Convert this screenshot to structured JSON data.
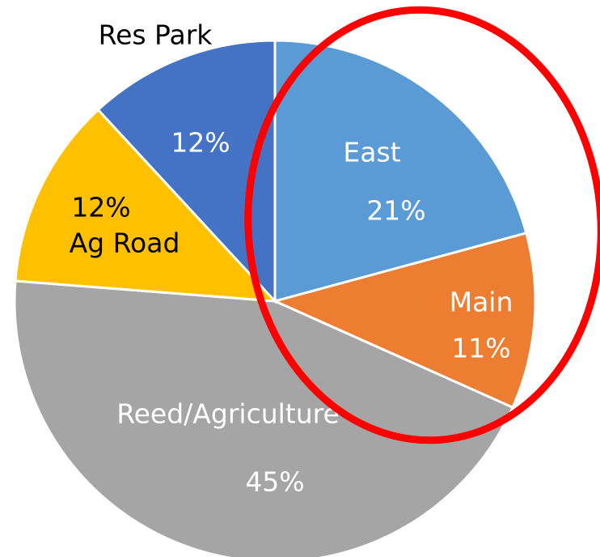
{
  "chart_data": {
    "type": "pie",
    "categories": [
      "East",
      "Main",
      "Reed/Agriculture",
      "Ag Road",
      "Res Park"
    ],
    "values": [
      21,
      11,
      45,
      12,
      12
    ],
    "value_labels": [
      "21%",
      "11%",
      "45%",
      "12%",
      "12%"
    ],
    "colors": [
      "#5b9bd5",
      "#ed7d31",
      "#a5a5a5",
      "#ffc000",
      "#4472c4"
    ]
  }
}
